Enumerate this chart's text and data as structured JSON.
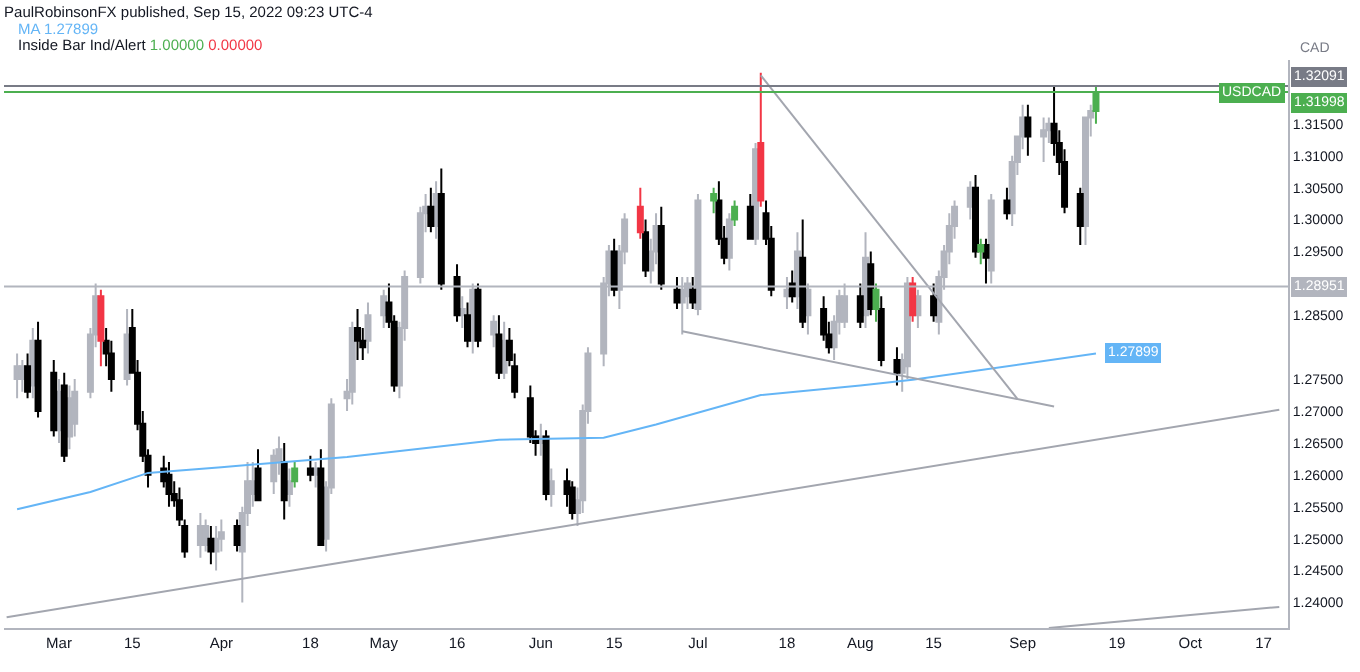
{
  "chart_data": {
    "type": "candlestick",
    "title": "PaulRobinsonFX published, Sep 15, 2022 09:23 UTC-4",
    "ylabel": "CAD",
    "x": [
      "2022-02-21",
      "2022-02-22",
      "2022-02-23",
      "2022-02-24",
      "2022-02-25",
      "2022-02-28",
      "2022-03-01",
      "2022-03-02",
      "2022-03-03",
      "2022-03-04",
      "2022-03-07",
      "2022-03-08",
      "2022-03-09",
      "2022-03-10",
      "2022-03-11",
      "2022-03-14",
      "2022-03-15",
      "2022-03-16",
      "2022-03-17",
      "2022-03-18",
      "2022-03-21",
      "2022-03-22",
      "2022-03-23",
      "2022-03-24",
      "2022-03-25",
      "2022-03-28",
      "2022-03-29",
      "2022-03-30",
      "2022-03-31",
      "2022-04-01",
      "2022-04-04",
      "2022-04-05",
      "2022-04-06",
      "2022-04-07",
      "2022-04-08",
      "2022-04-11",
      "2022-04-12",
      "2022-04-13",
      "2022-04-14",
      "2022-04-15",
      "2022-04-18",
      "2022-04-19",
      "2022-04-20",
      "2022-04-21",
      "2022-04-22",
      "2022-04-25",
      "2022-04-26",
      "2022-04-27",
      "2022-04-28",
      "2022-04-29",
      "2022-05-02",
      "2022-05-03",
      "2022-05-04",
      "2022-05-05",
      "2022-05-06",
      "2022-05-09",
      "2022-05-10",
      "2022-05-11",
      "2022-05-12",
      "2022-05-13",
      "2022-05-16",
      "2022-05-17",
      "2022-05-18",
      "2022-05-19",
      "2022-05-20",
      "2022-05-23",
      "2022-05-24",
      "2022-05-25",
      "2022-05-26",
      "2022-05-27",
      "2022-05-30",
      "2022-05-31",
      "2022-06-01",
      "2022-06-02",
      "2022-06-03",
      "2022-06-06",
      "2022-06-07",
      "2022-06-08",
      "2022-06-09",
      "2022-06-10",
      "2022-06-13",
      "2022-06-14",
      "2022-06-15",
      "2022-06-16",
      "2022-06-17",
      "2022-06-20",
      "2022-06-21",
      "2022-06-22",
      "2022-06-23",
      "2022-06-24",
      "2022-06-27",
      "2022-06-28",
      "2022-06-29",
      "2022-06-30",
      "2022-07-01",
      "2022-07-04",
      "2022-07-05",
      "2022-07-06",
      "2022-07-07",
      "2022-07-08",
      "2022-07-11",
      "2022-07-12",
      "2022-07-13",
      "2022-07-14",
      "2022-07-15",
      "2022-07-18",
      "2022-07-19",
      "2022-07-20",
      "2022-07-21",
      "2022-07-22",
      "2022-07-25",
      "2022-07-26",
      "2022-07-27",
      "2022-07-28",
      "2022-07-29",
      "2022-08-01",
      "2022-08-02",
      "2022-08-03",
      "2022-08-04",
      "2022-08-05",
      "2022-08-08",
      "2022-08-09",
      "2022-08-10",
      "2022-08-11",
      "2022-08-12",
      "2022-08-15",
      "2022-08-16",
      "2022-08-17",
      "2022-08-18",
      "2022-08-19",
      "2022-08-22",
      "2022-08-23",
      "2022-08-24",
      "2022-08-25",
      "2022-08-26",
      "2022-08-29",
      "2022-08-30",
      "2022-08-31",
      "2022-09-01",
      "2022-09-02",
      "2022-09-05",
      "2022-09-06",
      "2022-09-07",
      "2022-09-08",
      "2022-09-09",
      "2022-09-12",
      "2022-09-13",
      "2022-09-14",
      "2022-09-15"
    ],
    "ohlc": [
      [
        1.275,
        1.279,
        1.272,
        1.277
      ],
      [
        1.275,
        1.278,
        1.273,
        1.277
      ],
      [
        1.277,
        1.279,
        1.272,
        1.273
      ],
      [
        1.274,
        1.283,
        1.272,
        1.281
      ],
      [
        1.281,
        1.284,
        1.269,
        1.27
      ],
      [
        1.276,
        1.278,
        1.266,
        1.267
      ],
      [
        1.267,
        1.275,
        1.265,
        1.273
      ],
      [
        1.274,
        1.276,
        1.262,
        1.263
      ],
      [
        1.266,
        1.274,
        1.264,
        1.272
      ],
      [
        1.268,
        1.275,
        1.266,
        1.273
      ],
      [
        1.273,
        1.283,
        1.272,
        1.282
      ],
      [
        1.282,
        1.29,
        1.28,
        1.288
      ],
      [
        1.288,
        1.289,
        1.277,
        1.281
      ],
      [
        1.281,
        1.283,
        1.277,
        1.279
      ],
      [
        1.279,
        1.281,
        1.273,
        1.275
      ],
      [
        1.275,
        1.286,
        1.274,
        1.282
      ],
      [
        1.283,
        1.286,
        1.276,
        1.276
      ],
      [
        1.276,
        1.278,
        1.267,
        1.268
      ],
      [
        1.268,
        1.27,
        1.262,
        1.263
      ],
      [
        1.263,
        1.264,
        1.258,
        1.26
      ],
      [
        1.261,
        1.263,
        1.258,
        1.259
      ],
      [
        1.26,
        1.262,
        1.255,
        1.257
      ],
      [
        1.257,
        1.259,
        1.255,
        1.256
      ],
      [
        1.256,
        1.258,
        1.252,
        1.253
      ],
      [
        1.252,
        1.253,
        1.247,
        1.248
      ],
      [
        1.249,
        1.254,
        1.247,
        1.252
      ],
      [
        1.249,
        1.253,
        1.248,
        1.252
      ],
      [
        1.25,
        1.252,
        1.246,
        1.248
      ],
      [
        1.248,
        1.252,
        1.245,
        1.25
      ],
      [
        1.25,
        1.253,
        1.248,
        1.251
      ],
      [
        1.252,
        1.253,
        1.248,
        1.249
      ],
      [
        1.248,
        1.255,
        1.24,
        1.254
      ],
      [
        1.254,
        1.262,
        1.252,
        1.259
      ],
      [
        1.257,
        1.262,
        1.255,
        1.259
      ],
      [
        1.261,
        1.264,
        1.256,
        1.256
      ],
      [
        1.259,
        1.264,
        1.257,
        1.263
      ],
      [
        1.262,
        1.266,
        1.26,
        1.264
      ],
      [
        1.262,
        1.265,
        1.253,
        1.256
      ],
      [
        1.257,
        1.261,
        1.255,
        1.259
      ],
      [
        1.259,
        1.262,
        1.258,
        1.261
      ],
      [
        1.261,
        1.263,
        1.259,
        1.26
      ],
      [
        1.26,
        1.262,
        1.258,
        1.261
      ],
      [
        1.261,
        1.264,
        1.249,
        1.249
      ],
      [
        1.25,
        1.259,
        1.248,
        1.258
      ],
      [
        1.258,
        1.272,
        1.257,
        1.271
      ],
      [
        1.272,
        1.275,
        1.27,
        1.273
      ],
      [
        1.273,
        1.284,
        1.271,
        1.283
      ],
      [
        1.283,
        1.286,
        1.278,
        1.281
      ],
      [
        1.281,
        1.283,
        1.278,
        1.28
      ],
      [
        1.281,
        1.287,
        1.279,
        1.285
      ],
      [
        1.285,
        1.289,
        1.283,
        1.288
      ],
      [
        1.287,
        1.29,
        1.283,
        1.284
      ],
      [
        1.284,
        1.285,
        1.273,
        1.274
      ],
      [
        1.274,
        1.284,
        1.272,
        1.283
      ],
      [
        1.283,
        1.292,
        1.281,
        1.291
      ],
      [
        1.291,
        1.302,
        1.29,
        1.301
      ],
      [
        1.301,
        1.304,
        1.298,
        1.302
      ],
      [
        1.302,
        1.305,
        1.298,
        1.299
      ],
      [
        1.299,
        1.306,
        1.297,
        1.304
      ],
      [
        1.304,
        1.308,
        1.289,
        1.29
      ],
      [
        1.291,
        1.293,
        1.284,
        1.285
      ],
      [
        1.285,
        1.288,
        1.283,
        1.286
      ],
      [
        1.285,
        1.287,
        1.28,
        1.281
      ],
      [
        1.281,
        1.29,
        1.279,
        1.289
      ],
      [
        1.289,
        1.29,
        1.28,
        1.281
      ],
      [
        1.282,
        1.285,
        1.28,
        1.284
      ],
      [
        1.282,
        1.285,
        1.275,
        1.276
      ],
      [
        1.276,
        1.284,
        1.275,
        1.281
      ],
      [
        1.281,
        1.283,
        1.277,
        1.278
      ],
      [
        1.277,
        1.279,
        1.272,
        1.273
      ],
      [
        1.272,
        1.274,
        1.265,
        1.266
      ],
      [
        1.266,
        1.267,
        1.263,
        1.265
      ],
      [
        1.265,
        1.268,
        1.263,
        1.266
      ],
      [
        1.266,
        1.267,
        1.256,
        1.257
      ],
      [
        1.257,
        1.261,
        1.255,
        1.259
      ],
      [
        1.259,
        1.261,
        1.255,
        1.257
      ],
      [
        1.258,
        1.259,
        1.253,
        1.254
      ],
      [
        1.254,
        1.258,
        1.252,
        1.256
      ],
      [
        1.256,
        1.271,
        1.254,
        1.27
      ],
      [
        1.27,
        1.28,
        1.268,
        1.279
      ],
      [
        1.279,
        1.291,
        1.277,
        1.29
      ],
      [
        1.29,
        1.296,
        1.288,
        1.295
      ],
      [
        1.295,
        1.297,
        1.288,
        1.289
      ],
      [
        1.289,
        1.296,
        1.286,
        1.295
      ],
      [
        1.295,
        1.301,
        1.293,
        1.3
      ],
      [
        1.302,
        1.305,
        1.297,
        1.298
      ],
      [
        1.298,
        1.3,
        1.291,
        1.292
      ],
      [
        1.292,
        1.297,
        1.29,
        1.295
      ],
      [
        1.295,
        1.301,
        1.293,
        1.299
      ],
      [
        1.299,
        1.302,
        1.289,
        1.29
      ],
      [
        1.289,
        1.291,
        1.286,
        1.287
      ],
      [
        1.287,
        1.291,
        1.282,
        1.289
      ],
      [
        1.288,
        1.291,
        1.286,
        1.29
      ],
      [
        1.289,
        1.291,
        1.286,
        1.287
      ],
      [
        1.286,
        1.304,
        1.285,
        1.303
      ],
      [
        1.303,
        1.305,
        1.301,
        1.304
      ],
      [
        1.303,
        1.306,
        1.296,
        1.297
      ],
      [
        1.297,
        1.299,
        1.293,
        1.294
      ],
      [
        1.294,
        1.301,
        1.292,
        1.3
      ],
      [
        1.3,
        1.303,
        1.299,
        1.302
      ],
      [
        1.302,
        1.304,
        1.297,
        1.297
      ],
      [
        1.297,
        1.312,
        1.296,
        1.311
      ],
      [
        1.312,
        1.323,
        1.302,
        1.303
      ],
      [
        1.301,
        1.303,
        1.296,
        1.297
      ],
      [
        1.297,
        1.299,
        1.288,
        1.289
      ],
      [
        1.288,
        1.291,
        1.286,
        1.289
      ],
      [
        1.29,
        1.292,
        1.287,
        1.288
      ],
      [
        1.288,
        1.298,
        1.286,
        1.295
      ],
      [
        1.294,
        1.3,
        1.283,
        1.284
      ],
      [
        1.285,
        1.29,
        1.282,
        1.289
      ],
      [
        1.286,
        1.288,
        1.281,
        1.282
      ],
      [
        1.282,
        1.284,
        1.279,
        1.28
      ],
      [
        1.28,
        1.285,
        1.278,
        1.284
      ],
      [
        1.284,
        1.289,
        1.282,
        1.288
      ],
      [
        1.284,
        1.29,
        1.283,
        1.288
      ],
      [
        1.288,
        1.29,
        1.283,
        1.284
      ],
      [
        1.285,
        1.298,
        1.283,
        1.294
      ],
      [
        1.293,
        1.295,
        1.285,
        1.286
      ],
      [
        1.286,
        1.29,
        1.284,
        1.289
      ],
      [
        1.286,
        1.288,
        1.277,
        1.278
      ],
      [
        1.278,
        1.28,
        1.274,
        1.276
      ],
      [
        1.276,
        1.279,
        1.273,
        1.278
      ],
      [
        1.277,
        1.291,
        1.275,
        1.29
      ],
      [
        1.29,
        1.291,
        1.284,
        1.285
      ],
      [
        1.285,
        1.289,
        1.283,
        1.288
      ],
      [
        1.288,
        1.29,
        1.284,
        1.285
      ],
      [
        1.284,
        1.292,
        1.282,
        1.291
      ],
      [
        1.291,
        1.296,
        1.289,
        1.295
      ],
      [
        1.295,
        1.301,
        1.293,
        1.299
      ],
      [
        1.299,
        1.303,
        1.297,
        1.302
      ],
      [
        1.302,
        1.306,
        1.3,
        1.305
      ],
      [
        1.305,
        1.307,
        1.294,
        1.295
      ],
      [
        1.295,
        1.297,
        1.293,
        1.296
      ],
      [
        1.296,
        1.297,
        1.29,
        1.294
      ],
      [
        1.292,
        1.304,
        1.29,
        1.303
      ],
      [
        1.303,
        1.305,
        1.3,
        1.301
      ],
      [
        1.301,
        1.31,
        1.299,
        1.309
      ],
      [
        1.309,
        1.313,
        1.307,
        1.313
      ],
      [
        1.313,
        1.318,
        1.311,
        1.316
      ],
      [
        1.316,
        1.318,
        1.31,
        1.313
      ],
      [
        1.313,
        1.316,
        1.309,
        1.314
      ],
      [
        1.314,
        1.316,
        1.312,
        1.315
      ],
      [
        1.315,
        1.321,
        1.31,
        1.312
      ],
      [
        1.312,
        1.314,
        1.307,
        1.309
      ],
      [
        1.309,
        1.311,
        1.301,
        1.302
      ],
      [
        1.304,
        1.305,
        1.296,
        1.299
      ],
      [
        1.299,
        1.316,
        1.296,
        1.316
      ],
      [
        1.316,
        1.318,
        1.313,
        1.317
      ],
      [
        1.317,
        1.321,
        1.315,
        1.32
      ]
    ],
    "colors": [
      "#b2b5be",
      "#b2b5be",
      "#000000",
      "#b2b5be",
      "#000000",
      "#000000",
      "#b2b5be",
      "#000000",
      "#b2b5be",
      "#b2b5be",
      "#b2b5be",
      "#b2b5be",
      "#f23645",
      "#000000",
      "#000000",
      "#b2b5be",
      "#000000",
      "#000000",
      "#000000",
      "#000000",
      "#000000",
      "#000000",
      "#000000",
      "#000000",
      "#000000",
      "#b2b5be",
      "#b2b5be",
      "#000000",
      "#b2b5be",
      "#b2b5be",
      "#000000",
      "#b2b5be",
      "#b2b5be",
      "#b2b5be",
      "#000000",
      "#b2b5be",
      "#b2b5be",
      "#000000",
      "#b2b5be",
      "#4caf50",
      "#000000",
      "#b2b5be",
      "#000000",
      "#b2b5be",
      "#b2b5be",
      "#b2b5be",
      "#b2b5be",
      "#000000",
      "#000000",
      "#b2b5be",
      "#b2b5be",
      "#000000",
      "#000000",
      "#b2b5be",
      "#b2b5be",
      "#b2b5be",
      "#b2b5be",
      "#000000",
      "#b2b5be",
      "#000000",
      "#000000",
      "#b2b5be",
      "#000000",
      "#b2b5be",
      "#000000",
      "#b2b5be",
      "#000000",
      "#b2b5be",
      "#000000",
      "#000000",
      "#000000",
      "#000000",
      "#b2b5be",
      "#000000",
      "#b2b5be",
      "#000000",
      "#000000",
      "#b2b5be",
      "#b2b5be",
      "#b2b5be",
      "#b2b5be",
      "#b2b5be",
      "#000000",
      "#b2b5be",
      "#b2b5be",
      "#f23645",
      "#000000",
      "#b2b5be",
      "#b2b5be",
      "#000000",
      "#000000",
      "#b2b5be",
      "#b2b5be",
      "#000000",
      "#b2b5be",
      "#4caf50",
      "#000000",
      "#000000",
      "#b2b5be",
      "#4caf50",
      "#000000",
      "#b2b5be",
      "#f23645",
      "#000000",
      "#000000",
      "#b2b5be",
      "#000000",
      "#b2b5be",
      "#000000",
      "#b2b5be",
      "#000000",
      "#000000",
      "#b2b5be",
      "#b2b5be",
      "#b2b5be",
      "#000000",
      "#b2b5be",
      "#000000",
      "#4caf50",
      "#000000",
      "#000000",
      "#b2b5be",
      "#b2b5be",
      "#f23645",
      "#b2b5be",
      "#000000",
      "#b2b5be",
      "#b2b5be",
      "#b2b5be",
      "#b2b5be",
      "#b2b5be",
      "#000000",
      "#4caf50",
      "#000000",
      "#b2b5be",
      "#000000",
      "#b2b5be",
      "#b2b5be",
      "#b2b5be",
      "#000000",
      "#b2b5be",
      "#b2b5be",
      "#000000",
      "#000000",
      "#000000",
      "#000000",
      "#b2b5be",
      "#b2b5be",
      "#4caf50"
    ],
    "series": [
      {
        "type": "line",
        "name": "MA",
        "color": "#64b5f6",
        "x": [
          "2022-02-21",
          "2022-03-07",
          "2022-03-18",
          "2022-04-01",
          "2022-04-25",
          "2022-05-24",
          "2022-06-13",
          "2022-06-23",
          "2022-07-13",
          "2022-08-01",
          "2022-08-11",
          "2022-09-15"
        ],
        "values": [
          1.2546,
          1.2573,
          1.2603,
          1.2612,
          1.2628,
          1.2655,
          1.2658,
          1.2679,
          1.2725,
          1.274,
          1.2749,
          1.279
        ]
      },
      {
        "type": "line",
        "color": "#a3a6af",
        "x": [
          "2022-02-19",
          "2022-10-20"
        ],
        "values": [
          1.2377,
          1.2702
        ]
      },
      {
        "type": "line",
        "color": "#a3a6af",
        "x": [
          "2022-09-06",
          "2022-10-20"
        ],
        "values": [
          1.236,
          1.2393
        ]
      },
      {
        "type": "line",
        "color": "#a3a6af",
        "x": [
          "2022-07-13",
          "2022-08-31"
        ],
        "values": [
          1.3226,
          1.2719
        ]
      },
      {
        "type": "line",
        "color": "#a3a6af",
        "x": [
          "2022-06-28",
          "2022-09-07"
        ],
        "values": [
          1.2825,
          1.2707
        ]
      }
    ],
    "xlim": [
      "2022-02-18T12:00",
      "2022-10-21T16:00"
    ],
    "xticks": [
      {
        "value": "2022-03-01",
        "label": "Mar"
      },
      {
        "value": "2022-03-15",
        "label": "15"
      },
      {
        "value": "2022-04-01",
        "label": "Apr"
      },
      {
        "value": "2022-04-18",
        "label": "18"
      },
      {
        "value": "2022-05-02",
        "label": "May"
      },
      {
        "value": "2022-05-16",
        "label": "16"
      },
      {
        "value": "2022-06-01",
        "label": "Jun"
      },
      {
        "value": "2022-06-15",
        "label": "15"
      },
      {
        "value": "2022-07-01",
        "label": "Jul"
      },
      {
        "value": "2022-07-18",
        "label": "18"
      },
      {
        "value": "2022-08-01",
        "label": "Aug"
      },
      {
        "value": "2022-08-15",
        "label": "15"
      },
      {
        "value": "2022-09-01",
        "label": "Sep"
      },
      {
        "value": "2022-09-19",
        "label": "19"
      },
      {
        "value": "2022-10-03",
        "label": "Oct"
      },
      {
        "value": "2022-10-17",
        "label": "17"
      }
    ],
    "ylim": [
      1.236,
      1.325
    ],
    "yticks": [
      {
        "value": 1.24,
        "label": "1.24000"
      },
      {
        "value": 1.245,
        "label": "1.24500"
      },
      {
        "value": 1.25,
        "label": "1.25000"
      },
      {
        "value": 1.255,
        "label": "1.25500"
      },
      {
        "value": 1.26,
        "label": "1.26000"
      },
      {
        "value": 1.265,
        "label": "1.26500"
      },
      {
        "value": 1.27,
        "label": "1.27000"
      },
      {
        "value": 1.275,
        "label": "1.27500"
      },
      {
        "value": 1.285,
        "label": "1.28500"
      },
      {
        "value": 1.295,
        "label": "1.29500"
      },
      {
        "value": 1.3,
        "label": "1.30000"
      },
      {
        "value": 1.305,
        "label": "1.30500"
      },
      {
        "value": 1.31,
        "label": "1.31000"
      },
      {
        "value": 1.315,
        "label": "1.31500"
      }
    ],
    "ref_lines": [
      {
        "axis": "y",
        "value": 1.32091,
        "label": "1.32091",
        "color": "#787b86"
      },
      {
        "axis": "y",
        "value": 1.31998,
        "label": "1.31998",
        "color": "#4caf50"
      },
      {
        "axis": "y",
        "value": 1.28951,
        "label": "1.28951",
        "color": "#b2b5be"
      }
    ],
    "annotations": [
      "1.27899",
      "Inside Bar Ind/Alert",
      "1.00000",
      "0.00000",
      {
        "text": "USDCAD",
        "y": 1.31998
      },
      {
        "text": "1.27899",
        "x": "2022-09-15",
        "y": 1.279
      }
    ],
    "grid": false,
    "legend": false
  }
}
